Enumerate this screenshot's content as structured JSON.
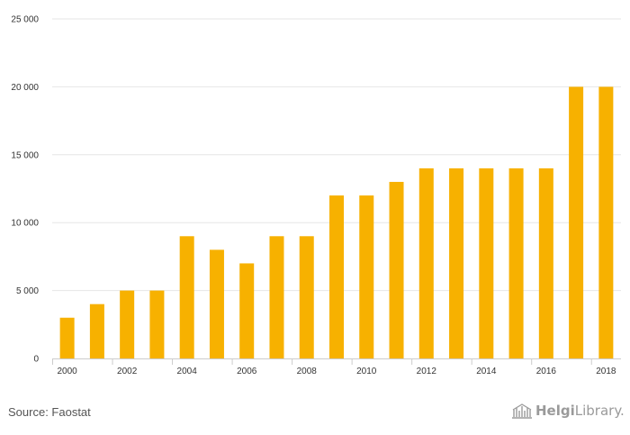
{
  "chart_data": {
    "type": "bar",
    "categories": [
      "2000",
      "2001",
      "2002",
      "2003",
      "2004",
      "2005",
      "2006",
      "2007",
      "2008",
      "2009",
      "2010",
      "2011",
      "2012",
      "2013",
      "2014",
      "2015",
      "2016",
      "2017",
      "2018"
    ],
    "x_tick_labels": [
      "2000",
      "2002",
      "2004",
      "2006",
      "2008",
      "2010",
      "2012",
      "2014",
      "2016",
      "2018"
    ],
    "values": [
      3000,
      4000,
      5000,
      5000,
      9000,
      8000,
      7000,
      9000,
      9000,
      12000,
      12000,
      13000,
      14000,
      14000,
      14000,
      14000,
      14000,
      20000,
      20000
    ],
    "ylim": [
      0,
      25000
    ],
    "y_ticks": [
      0,
      5000,
      10000,
      15000,
      20000,
      25000
    ],
    "y_tick_labels": [
      "0",
      "5 000",
      "10 000",
      "15 000",
      "20 000",
      "25 000"
    ],
    "grid": true,
    "bar_color": "#f7b100",
    "title": "",
    "xlabel": "",
    "ylabel": ""
  },
  "footer": {
    "source": "Source: Faostat",
    "logo_text_part1": "Helgi",
    "logo_text_part2": "Library."
  }
}
